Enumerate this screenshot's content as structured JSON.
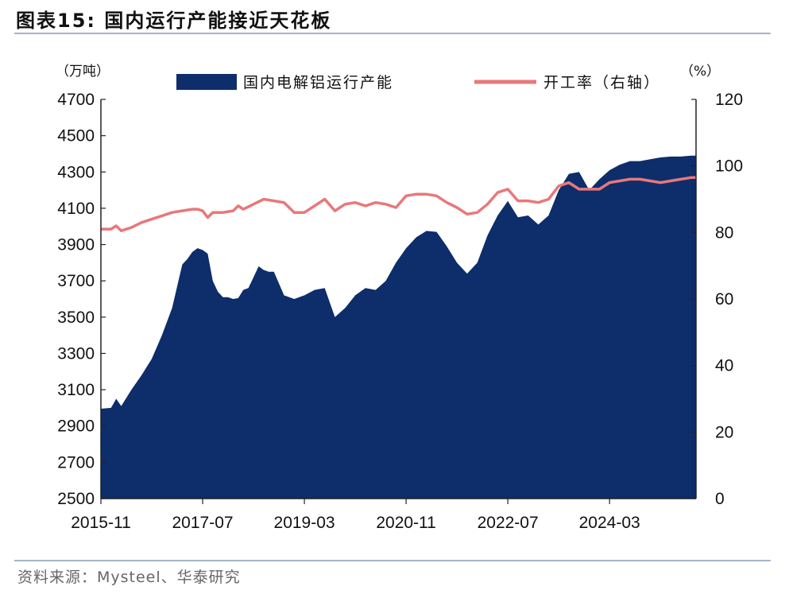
{
  "figure": {
    "title": "图表15:  国内运行产能接近天花板",
    "source": "资料来源：Mysteel、华泰研究"
  },
  "colors": {
    "area": "#0d2d6b",
    "line": "#e8787a",
    "axis": "#222222",
    "rule": "#a7b4c9"
  },
  "chart_data": {
    "type": "area",
    "title": "",
    "x_ticks": [
      "2015-11",
      "2017-07",
      "2019-03",
      "2020-11",
      "2022-07",
      "2024-03"
    ],
    "left_axis": {
      "unit": "（万吨）",
      "min": 2500,
      "max": 4700,
      "ticks": [
        4700,
        4500,
        4300,
        4100,
        3900,
        3700,
        3500,
        3300,
        3100,
        2900,
        2700,
        2500
      ]
    },
    "right_axis": {
      "unit": "（%）",
      "min": 0,
      "max": 120,
      "ticks": [
        120,
        100,
        80,
        60,
        40,
        20,
        0
      ]
    },
    "legend_position": "top",
    "grid": false,
    "x_range_months": [
      0,
      117
    ],
    "series": [
      {
        "name": "国内电解铝运行产能",
        "type": "area",
        "axis": "left",
        "x": [
          0,
          2,
          3,
          4,
          6,
          8,
          10,
          12,
          14,
          16,
          17,
          18,
          19,
          20,
          21,
          22,
          23,
          24,
          25,
          26,
          27,
          28,
          29,
          30,
          31,
          32,
          33,
          34,
          36,
          38,
          40,
          42,
          44,
          46,
          48,
          50,
          52,
          54,
          56,
          58,
          60,
          62,
          64,
          66,
          68,
          70,
          72,
          74,
          76,
          78,
          80,
          82,
          84,
          86,
          88,
          90,
          92,
          94,
          96,
          98,
          100,
          102,
          104,
          106,
          108,
          110,
          112,
          114,
          116,
          117
        ],
        "values": [
          2995,
          3000,
          3050,
          3010,
          3100,
          3180,
          3270,
          3400,
          3550,
          3790,
          3820,
          3860,
          3880,
          3870,
          3850,
          3700,
          3640,
          3610,
          3610,
          3600,
          3605,
          3650,
          3660,
          3720,
          3780,
          3760,
          3750,
          3750,
          3620,
          3600,
          3620,
          3650,
          3660,
          3500,
          3550,
          3620,
          3660,
          3650,
          3700,
          3800,
          3880,
          3940,
          3975,
          3970,
          3890,
          3800,
          3740,
          3800,
          3950,
          4060,
          4140,
          4050,
          4060,
          4010,
          4060,
          4200,
          4290,
          4300,
          4200,
          4260,
          4310,
          4340,
          4360,
          4360,
          4370,
          4380,
          4385,
          4385,
          4390,
          4390
        ]
      },
      {
        "name": "开工率（右轴）",
        "type": "line",
        "axis": "right",
        "x": [
          0,
          2,
          3,
          4,
          6,
          8,
          10,
          12,
          14,
          16,
          18,
          19,
          20,
          21,
          22,
          24,
          26,
          27,
          28,
          30,
          32,
          34,
          36,
          38,
          40,
          42,
          44,
          46,
          48,
          50,
          52,
          54,
          56,
          58,
          60,
          62,
          64,
          66,
          68,
          70,
          72,
          74,
          76,
          78,
          80,
          82,
          84,
          86,
          88,
          90,
          92,
          94,
          96,
          98,
          100,
          102,
          104,
          106,
          108,
          110,
          112,
          114,
          116,
          117
        ],
        "values": [
          81,
          81,
          82,
          80.5,
          81.5,
          83,
          84,
          85,
          86,
          86.5,
          87,
          87,
          86.5,
          84.5,
          86,
          86,
          86.5,
          88,
          87,
          88.5,
          90,
          89.5,
          89,
          86,
          86,
          88,
          90,
          86.5,
          88.5,
          89,
          88,
          89,
          88.5,
          87.5,
          91,
          91.5,
          91.5,
          91,
          89,
          87.5,
          85.5,
          86,
          88.5,
          92,
          93,
          89.5,
          89.5,
          89,
          90,
          94,
          95,
          93,
          93,
          93,
          95,
          95.5,
          96,
          96,
          95.5,
          95,
          95.5,
          96,
          96.5,
          96.5
        ]
      }
    ]
  }
}
